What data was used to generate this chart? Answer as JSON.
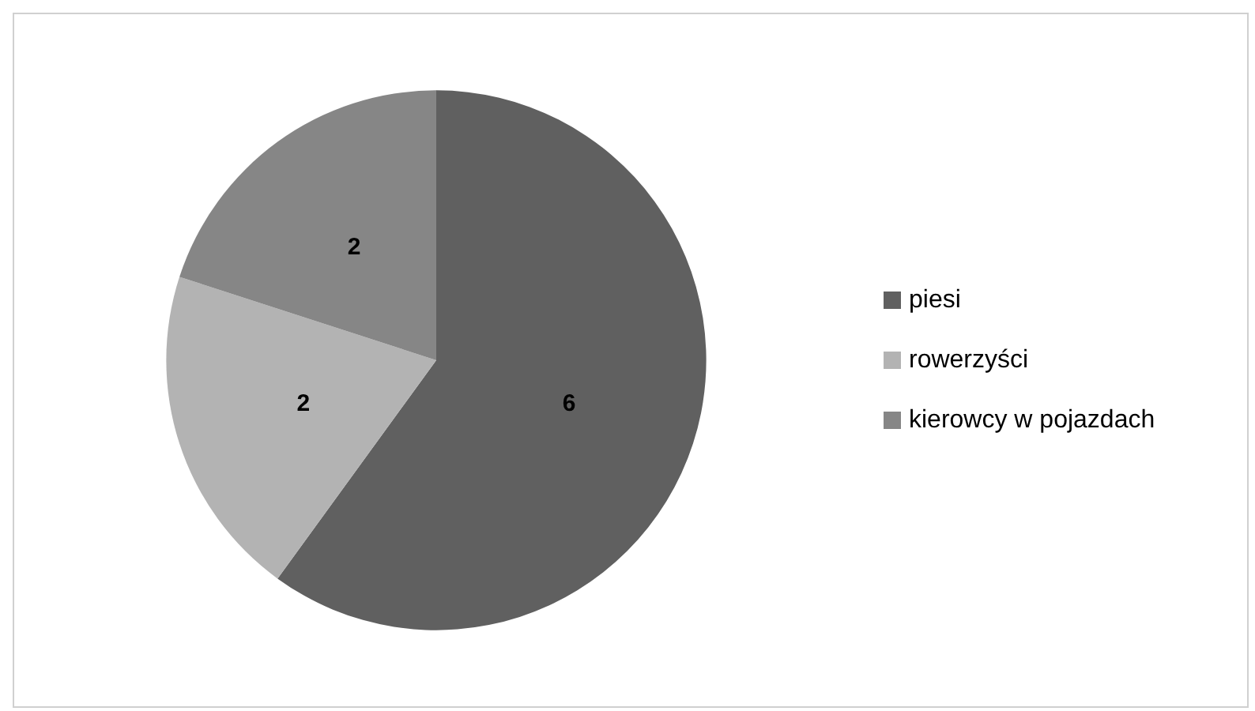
{
  "chart_data": {
    "type": "pie",
    "categories": [
      "piesi",
      "rowerzyści",
      "kierowcy w pojazdach"
    ],
    "values": [
      6,
      2,
      2
    ],
    "colors": [
      "#606060",
      "#b3b3b3",
      "#868686"
    ],
    "data_labels": true,
    "legend": "right"
  }
}
